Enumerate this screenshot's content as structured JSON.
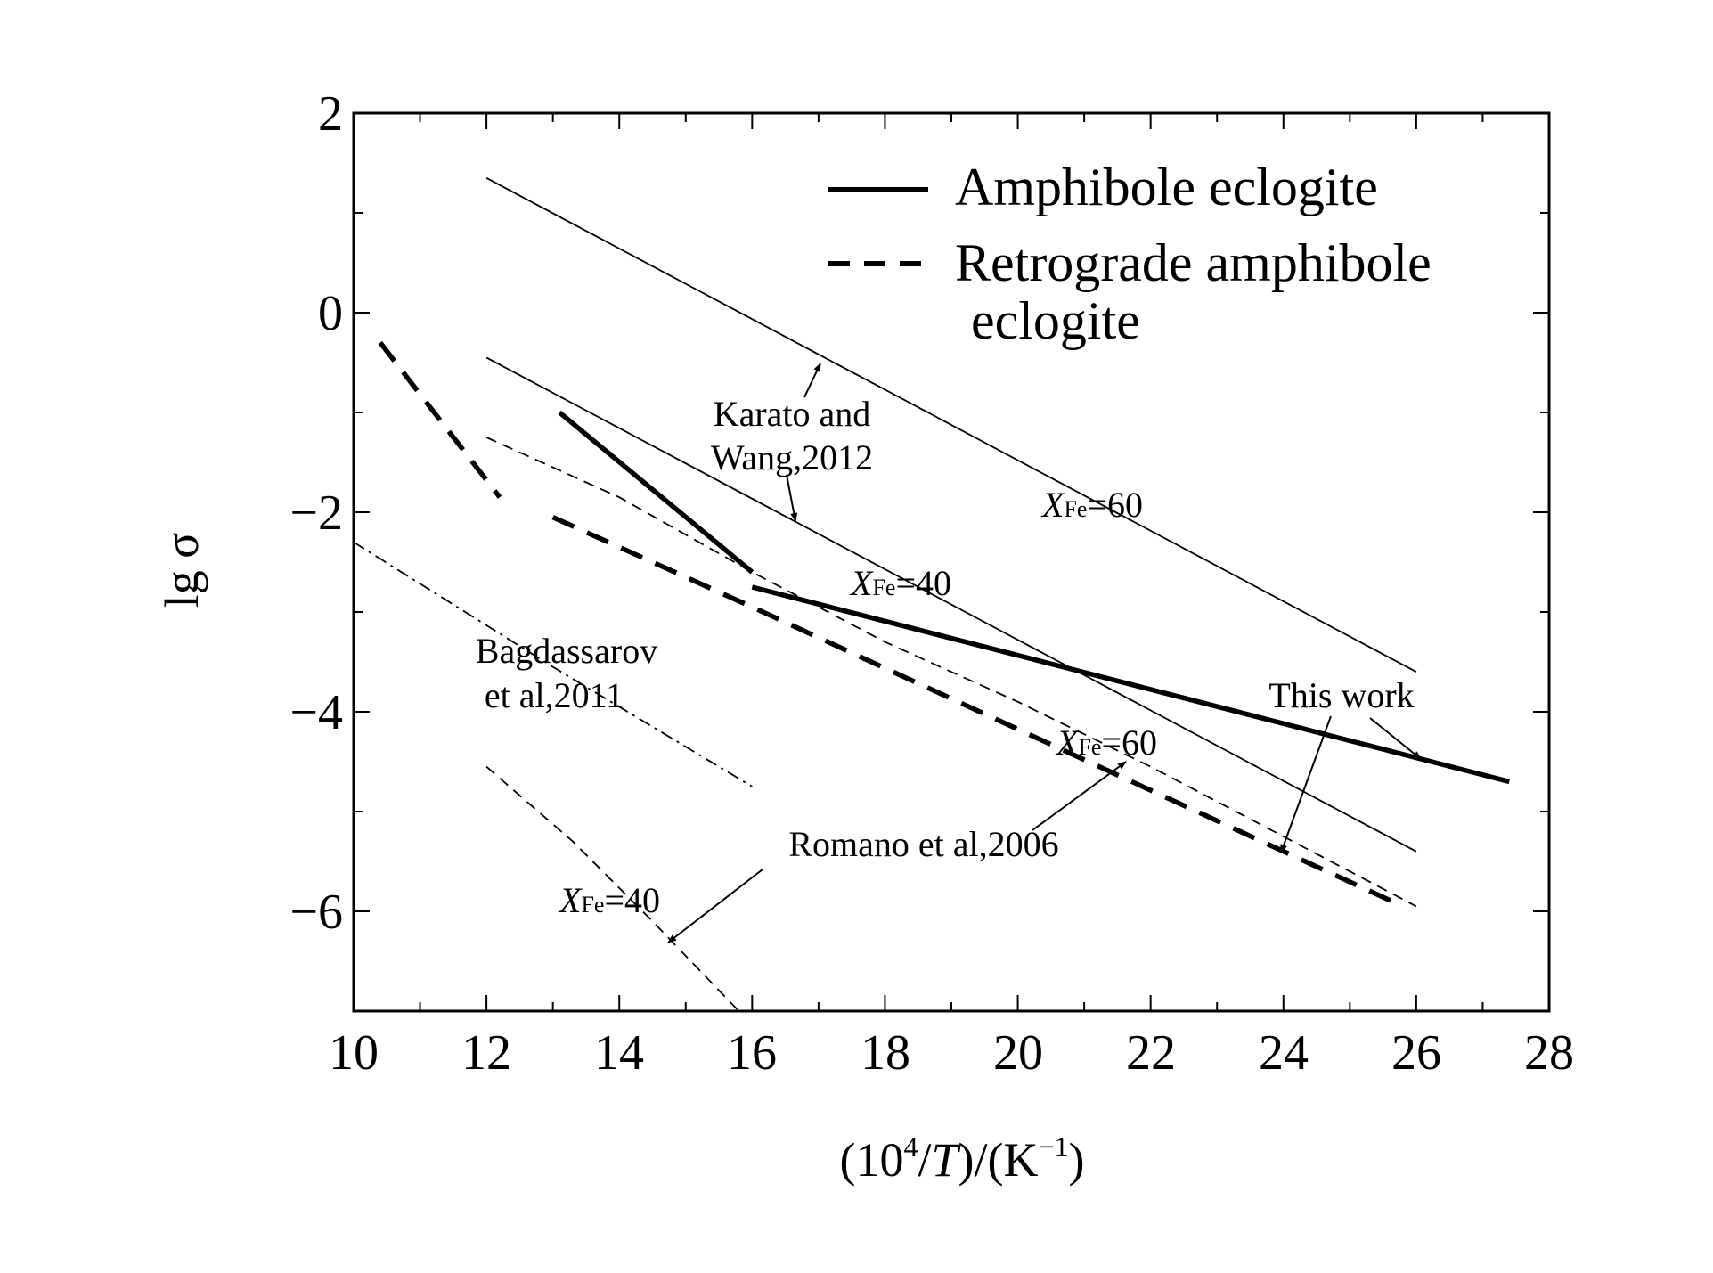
{
  "chart_data": {
    "type": "line",
    "title": "",
    "xlabel": "(10^4/T)/(K^-1)",
    "xlabel_parts": {
      "open": "(10",
      "sup": "4",
      "slash": "/",
      "T": "T",
      "mid": ")/(K",
      "sup2": "−1",
      "close": ")"
    },
    "ylabel": "lg σ",
    "xlim": [
      10,
      28
    ],
    "ylim": [
      -7,
      2
    ],
    "xticks": [
      "10",
      "12",
      "14",
      "16",
      "18",
      "20",
      "22",
      "24",
      "26",
      "28"
    ],
    "yticks": [
      "2",
      "0",
      "−2",
      "−4",
      "−6"
    ],
    "grid": false,
    "legend": {
      "placement": "top-right",
      "entries": [
        "Amphibole eclogite",
        "Retrograde amphibole",
        "eclogite"
      ]
    },
    "series": [
      {
        "name": "Amphibole eclogite (This work) segment 1",
        "style": "thick-solid",
        "x": [
          13.1,
          16.0
        ],
        "y": [
          -1.0,
          -2.6
        ]
      },
      {
        "name": "Amphibole eclogite (This work) segment 2",
        "style": "thick-solid",
        "x": [
          16.0,
          27.4
        ],
        "y": [
          -2.75,
          -4.7
        ]
      },
      {
        "name": "Retrograde amphibole eclogite segment 1",
        "style": "thick-dashed",
        "x": [
          10.4,
          12.2
        ],
        "y": [
          -0.3,
          -1.85
        ]
      },
      {
        "name": "Retrograde amphibole eclogite segment 2",
        "style": "thick-dashed",
        "x": [
          13.0,
          16.0,
          25.8
        ],
        "y": [
          -2.05,
          -2.95,
          -5.95
        ]
      },
      {
        "name": "Karato and Wang 2012 XFe=60",
        "style": "thin-solid",
        "x": [
          12,
          26
        ],
        "y": [
          1.35,
          -3.6
        ]
      },
      {
        "name": "Karato and Wang 2012 XFe=40",
        "style": "thin-solid",
        "x": [
          12,
          26
        ],
        "y": [
          -0.45,
          -5.4
        ]
      },
      {
        "name": "Romano et al 2006 XFe=60",
        "style": "thin-dashed",
        "x": [
          12,
          14,
          16,
          18,
          20,
          22,
          24,
          26
        ],
        "y": [
          -1.25,
          -1.85,
          -2.6,
          -3.3,
          -3.9,
          -4.55,
          -5.25,
          -5.95
        ]
      },
      {
        "name": "Romano et al 2006 XFe=40",
        "style": "thin-dashed",
        "x": [
          12,
          13.3,
          14.5,
          15.8
        ],
        "y": [
          -4.55,
          -5.3,
          -6.1,
          -7.0
        ]
      },
      {
        "name": "Bagdassarov et al 2011",
        "style": "dash-dot",
        "x": [
          10,
          13,
          16
        ],
        "y": [
          -2.3,
          -3.55,
          -4.75
        ]
      }
    ],
    "annotations": {
      "karato_1": "Karato and",
      "karato_2": "Wang,2012",
      "bag_1": "Bagdassarov",
      "bag_2": "et al,2011",
      "this_work": "This work",
      "romano": "Romano et al,2006",
      "x_sym": "X",
      "fe_sub": "Fe",
      "eq60": "=60",
      "eq40": "=40"
    }
  }
}
